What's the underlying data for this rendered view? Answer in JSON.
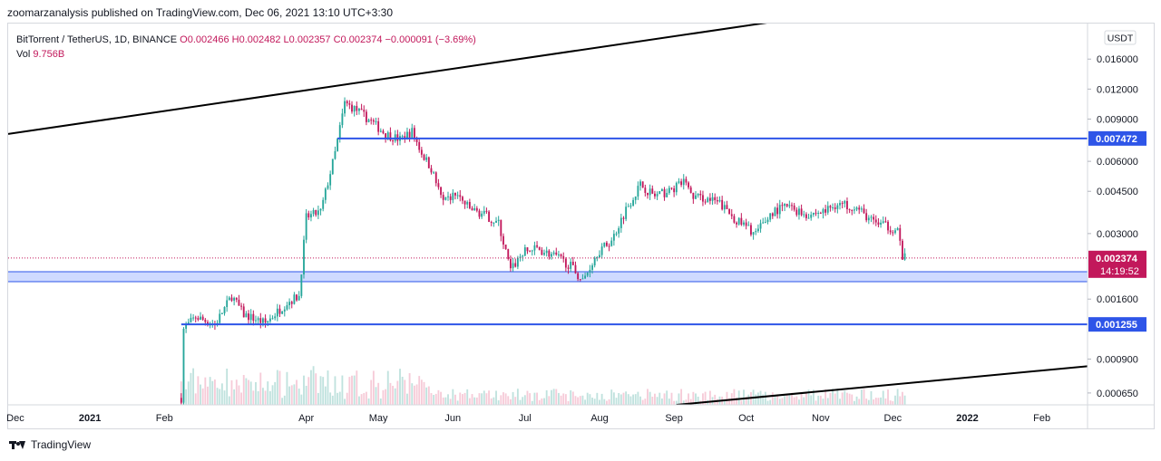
{
  "publisher": "zoomarzanalysis published on TradingView.com, Dec 06, 2021 13:10 UTC+3:30",
  "footer": {
    "brand": "TradingView",
    "logo_icon": "tradingview-logo-icon"
  },
  "legend": {
    "symbol": "BitTorrent / TetherUS, 1D, BINANCE",
    "open": "O0.002466",
    "high": "H0.002482",
    "low": "L0.002357",
    "close": "C0.002374",
    "change": "−0.000091 (−3.69%)",
    "vol_label": "Vol",
    "vol_value": "9.756B"
  },
  "colors": {
    "up": "#26a69a",
    "down": "#c2185b",
    "level": "#2e55e8",
    "zone_fill": "#c7d3ff",
    "trend": "#000000",
    "price_dot": "#c2185b"
  },
  "chart_data": {
    "type": "candlestick",
    "yscale": "log",
    "ylim": [
      0.00058,
      0.0225
    ],
    "currency": "USDT",
    "y_ticks": [
      {
        "value": 0.016,
        "label": "0.016000"
      },
      {
        "value": 0.012,
        "label": "0.012000"
      },
      {
        "value": 0.009,
        "label": "0.009000"
      },
      {
        "value": 0.006,
        "label": "0.006000"
      },
      {
        "value": 0.0045,
        "label": "0.004500"
      },
      {
        "value": 0.003,
        "label": "0.003000"
      },
      {
        "value": 0.0016,
        "label": "0.001600"
      },
      {
        "value": 0.0009,
        "label": "0.000900"
      },
      {
        "value": 0.00065,
        "label": "0.000650"
      }
    ],
    "x_ticks": [
      {
        "date": "2020-12-01",
        "label": "Dec",
        "bold": false
      },
      {
        "date": "2021-01-01",
        "label": "2021",
        "bold": true
      },
      {
        "date": "2021-02-01",
        "label": "Feb",
        "bold": false
      },
      {
        "date": "2021-04-01",
        "label": "Apr",
        "bold": false
      },
      {
        "date": "2021-05-01",
        "label": "May",
        "bold": false
      },
      {
        "date": "2021-06-01",
        "label": "Jun",
        "bold": false
      },
      {
        "date": "2021-07-01",
        "label": "Jul",
        "bold": false
      },
      {
        "date": "2021-08-01",
        "label": "Aug",
        "bold": false
      },
      {
        "date": "2021-09-01",
        "label": "Sep",
        "bold": false
      },
      {
        "date": "2021-10-01",
        "label": "Oct",
        "bold": false
      },
      {
        "date": "2021-11-01",
        "label": "Nov",
        "bold": false
      },
      {
        "date": "2021-12-01",
        "label": "Dec",
        "bold": false
      },
      {
        "date": "2022-01-01",
        "label": "2022",
        "bold": true
      },
      {
        "date": "2022-02-01",
        "label": "Feb",
        "bold": false
      }
    ],
    "x_range": [
      "2020-11-28",
      "2022-02-20"
    ],
    "price_path": [
      {
        "date": "2021-02-08",
        "price": 0.00062
      },
      {
        "date": "2021-02-09",
        "price": 0.0012
      },
      {
        "date": "2021-02-14",
        "price": 0.00135
      },
      {
        "date": "2021-02-22",
        "price": 0.00125
      },
      {
        "date": "2021-03-01",
        "price": 0.00165
      },
      {
        "date": "2021-03-06",
        "price": 0.00138
      },
      {
        "date": "2021-03-15",
        "price": 0.00127
      },
      {
        "date": "2021-03-24",
        "price": 0.00155
      },
      {
        "date": "2021-03-29",
        "price": 0.00165
      },
      {
        "date": "2021-04-01",
        "price": 0.0035
      },
      {
        "date": "2021-04-07",
        "price": 0.0037
      },
      {
        "date": "2021-04-13",
        "price": 0.0065
      },
      {
        "date": "2021-04-17",
        "price": 0.0105
      },
      {
        "date": "2021-04-22",
        "price": 0.0098
      },
      {
        "date": "2021-04-28",
        "price": 0.0088
      },
      {
        "date": "2021-05-04",
        "price": 0.0078
      },
      {
        "date": "2021-05-10",
        "price": 0.0074
      },
      {
        "date": "2021-05-15",
        "price": 0.008
      },
      {
        "date": "2021-05-19",
        "price": 0.0065
      },
      {
        "date": "2021-05-23",
        "price": 0.0056
      },
      {
        "date": "2021-05-28",
        "price": 0.004
      },
      {
        "date": "2021-06-02",
        "price": 0.0044
      },
      {
        "date": "2021-06-08",
        "price": 0.0038
      },
      {
        "date": "2021-06-14",
        "price": 0.0036
      },
      {
        "date": "2021-06-20",
        "price": 0.0033
      },
      {
        "date": "2021-06-25",
        "price": 0.0021
      },
      {
        "date": "2021-06-30",
        "price": 0.0025
      },
      {
        "date": "2021-07-06",
        "price": 0.0026
      },
      {
        "date": "2021-07-14",
        "price": 0.0024
      },
      {
        "date": "2021-07-20",
        "price": 0.0022
      },
      {
        "date": "2021-07-25",
        "price": 0.0019
      },
      {
        "date": "2021-07-31",
        "price": 0.0025
      },
      {
        "date": "2021-08-06",
        "price": 0.0028
      },
      {
        "date": "2021-08-12",
        "price": 0.0038
      },
      {
        "date": "2021-08-18",
        "price": 0.0048
      },
      {
        "date": "2021-08-24",
        "price": 0.0043
      },
      {
        "date": "2021-08-30",
        "price": 0.0045
      },
      {
        "date": "2021-09-06",
        "price": 0.005
      },
      {
        "date": "2021-09-08",
        "price": 0.0043
      },
      {
        "date": "2021-09-14",
        "price": 0.0042
      },
      {
        "date": "2021-09-20",
        "price": 0.004
      },
      {
        "date": "2021-09-27",
        "price": 0.0034
      },
      {
        "date": "2021-10-05",
        "price": 0.003
      },
      {
        "date": "2021-10-12",
        "price": 0.0037
      },
      {
        "date": "2021-10-18",
        "price": 0.0039
      },
      {
        "date": "2021-10-26",
        "price": 0.0036
      },
      {
        "date": "2021-11-02",
        "price": 0.0037
      },
      {
        "date": "2021-11-08",
        "price": 0.004
      },
      {
        "date": "2021-11-15",
        "price": 0.0039
      },
      {
        "date": "2021-11-22",
        "price": 0.0034
      },
      {
        "date": "2021-11-29",
        "price": 0.0032
      },
      {
        "date": "2021-12-03",
        "price": 0.0031
      },
      {
        "date": "2021-12-05",
        "price": 0.0024
      },
      {
        "date": "2021-12-06",
        "price": 0.002374
      }
    ],
    "horizontal_levels": [
      {
        "price": 0.007472,
        "label": "0.007472",
        "from_date": "2021-04-14"
      },
      {
        "price": 0.001255,
        "label": "0.001255",
        "from_date": "2021-02-08"
      }
    ],
    "support_zone": {
      "top": 0.00208,
      "bottom": 0.00189
    },
    "trendlines": [
      {
        "from": {
          "date": "2020-11-28",
          "price": 0.0078
        },
        "to": {
          "date": "2021-10-20",
          "price": 0.0235
        }
      },
      {
        "from": {
          "date": "2021-09-02",
          "price": 0.00058
        },
        "to": {
          "date": "2022-02-20",
          "price": 0.00084
        }
      }
    ],
    "current": {
      "price": 0.002374,
      "label": "0.002374",
      "countdown": "14:19:52"
    }
  }
}
